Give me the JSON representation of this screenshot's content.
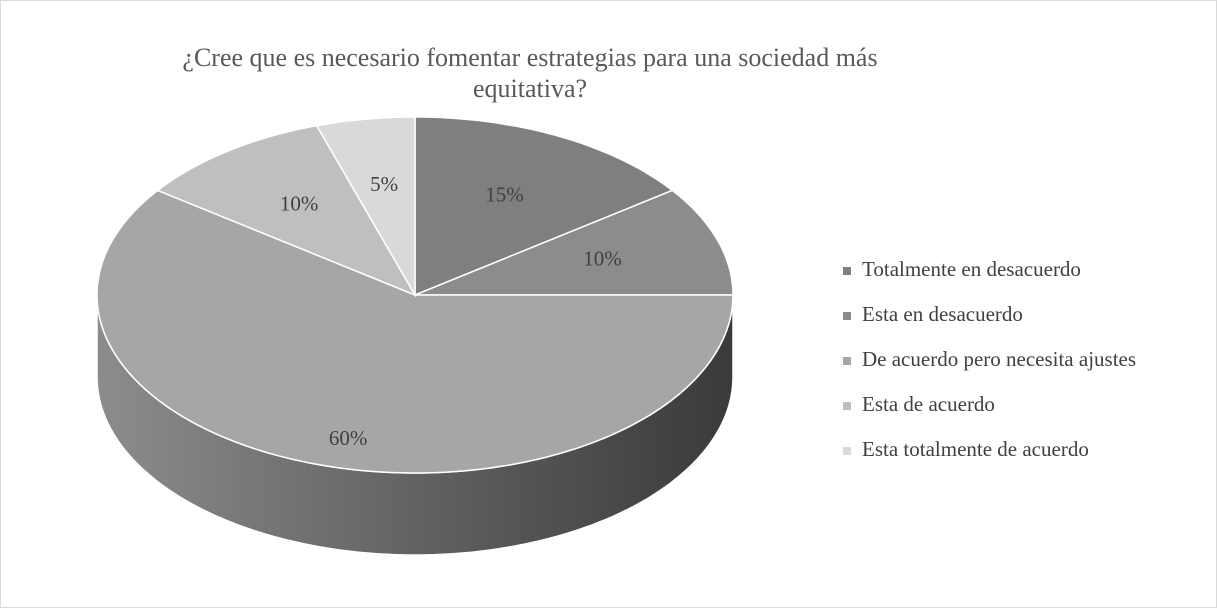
{
  "chart_data": {
    "type": "pie",
    "title": "¿Cree que es necesario fomentar estrategias para una sociedad más equitativa?",
    "categories": [
      "Totalmente en desacuerdo",
      "Esta en desacuerdo",
      "De acuerdo pero necesita ajustes",
      "Esta de acuerdo",
      "Esta totalmente de acuerdo"
    ],
    "values": [
      15,
      10,
      60,
      10,
      5
    ],
    "value_labels": [
      "15%",
      "10%",
      "60%",
      "10%",
      "5%"
    ],
    "colors": [
      "#7f7f7f",
      "#8c8c8c",
      "#a6a6a6",
      "#bfbfbf",
      "#d9d9d9"
    ],
    "legend": "right"
  }
}
